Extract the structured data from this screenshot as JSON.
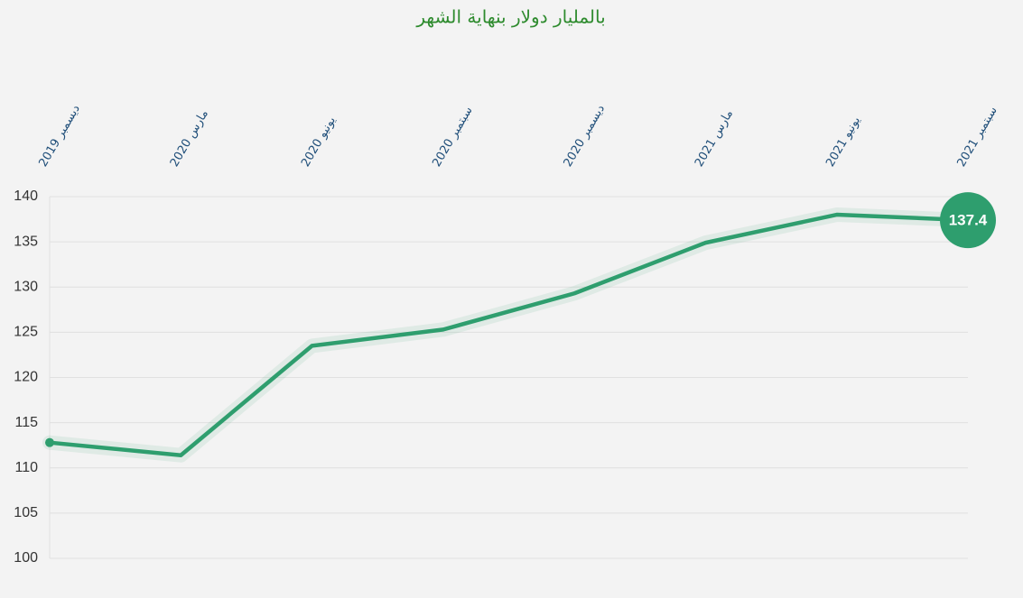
{
  "chart_data": {
    "type": "line",
    "subtitle": "بالمليار دولار بنهاية الشهر",
    "categories": [
      "ديسمبر 2019",
      "مارس 2020",
      "يونيو 2020",
      "سبتمبر 2020",
      "ديسمبر 2020",
      "مارس 2021",
      "يونيو 2021",
      "سبتمبر 2021"
    ],
    "values": [
      112.8,
      111.4,
      123.5,
      125.3,
      129.3,
      134.9,
      138.0,
      137.4
    ],
    "color": "#2e9e6e",
    "ylim": [
      100,
      140
    ],
    "yticks": [
      100,
      105,
      110,
      115,
      120,
      125,
      130,
      135,
      140
    ],
    "grid": true
  }
}
